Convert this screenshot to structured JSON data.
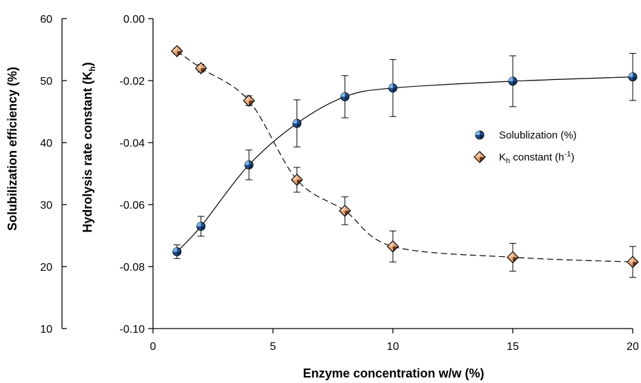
{
  "chart_data": {
    "type": "scatter",
    "xlabel": "Enzyme concentration w/w (%)",
    "ylabel_outer": "Solubilization efficiency (%)",
    "ylabel_inner_main": "Hydrolysis rate constant (K",
    "ylabel_inner_sub": "h",
    "ylabel_inner_end": ")",
    "xlim": [
      0,
      20
    ],
    "ylim_outer": [
      10,
      60
    ],
    "ylim_inner": [
      -0.1,
      0.0
    ],
    "x_ticks": [
      "0",
      "5",
      "10",
      "15",
      "20"
    ],
    "y_outer_ticks": [
      "10",
      "20",
      "30",
      "40",
      "50",
      "60"
    ],
    "y_inner_ticks": [
      "-0.10",
      "-0.08",
      "-0.06",
      "-0.04",
      "-0.02",
      "0.00"
    ],
    "grid": false,
    "legend_position": "right-center",
    "series": [
      {
        "name": "Solublization (%)",
        "axis": "outer",
        "marker": "circle",
        "color": "#1f4f8f",
        "fit_line": "solid",
        "points": [
          {
            "x": 1,
            "y": 22.4,
            "err": 1.1
          },
          {
            "x": 2,
            "y": 26.5,
            "err": 1.6
          },
          {
            "x": 4,
            "y": 36.4,
            "err": 2.4
          },
          {
            "x": 6,
            "y": 43.1,
            "err": 3.8
          },
          {
            "x": 8,
            "y": 47.4,
            "err": 3.4
          },
          {
            "x": 10,
            "y": 48.8,
            "err": 4.6
          },
          {
            "x": 15,
            "y": 49.9,
            "err": 4.1
          },
          {
            "x": 20,
            "y": 50.6,
            "err": 3.8
          }
        ]
      },
      {
        "name_main": "K",
        "name_sub": "h",
        "name_mid": " constant (h",
        "name_sup": "-1",
        "name_end": ")",
        "axis": "inner",
        "marker": "diamond",
        "color": "#e8a57a",
        "fit_line": "dashed",
        "points": [
          {
            "x": 1,
            "y": -0.0105,
            "err": 0.001
          },
          {
            "x": 2,
            "y": -0.016,
            "err": 0.0012
          },
          {
            "x": 4,
            "y": -0.0265,
            "err": 0.0016
          },
          {
            "x": 6,
            "y": -0.052,
            "err": 0.004
          },
          {
            "x": 8,
            "y": -0.062,
            "err": 0.0045
          },
          {
            "x": 10,
            "y": -0.0735,
            "err": 0.005
          },
          {
            "x": 15,
            "y": -0.077,
            "err": 0.0045
          },
          {
            "x": 20,
            "y": -0.0785,
            "err": 0.005
          }
        ]
      }
    ]
  }
}
